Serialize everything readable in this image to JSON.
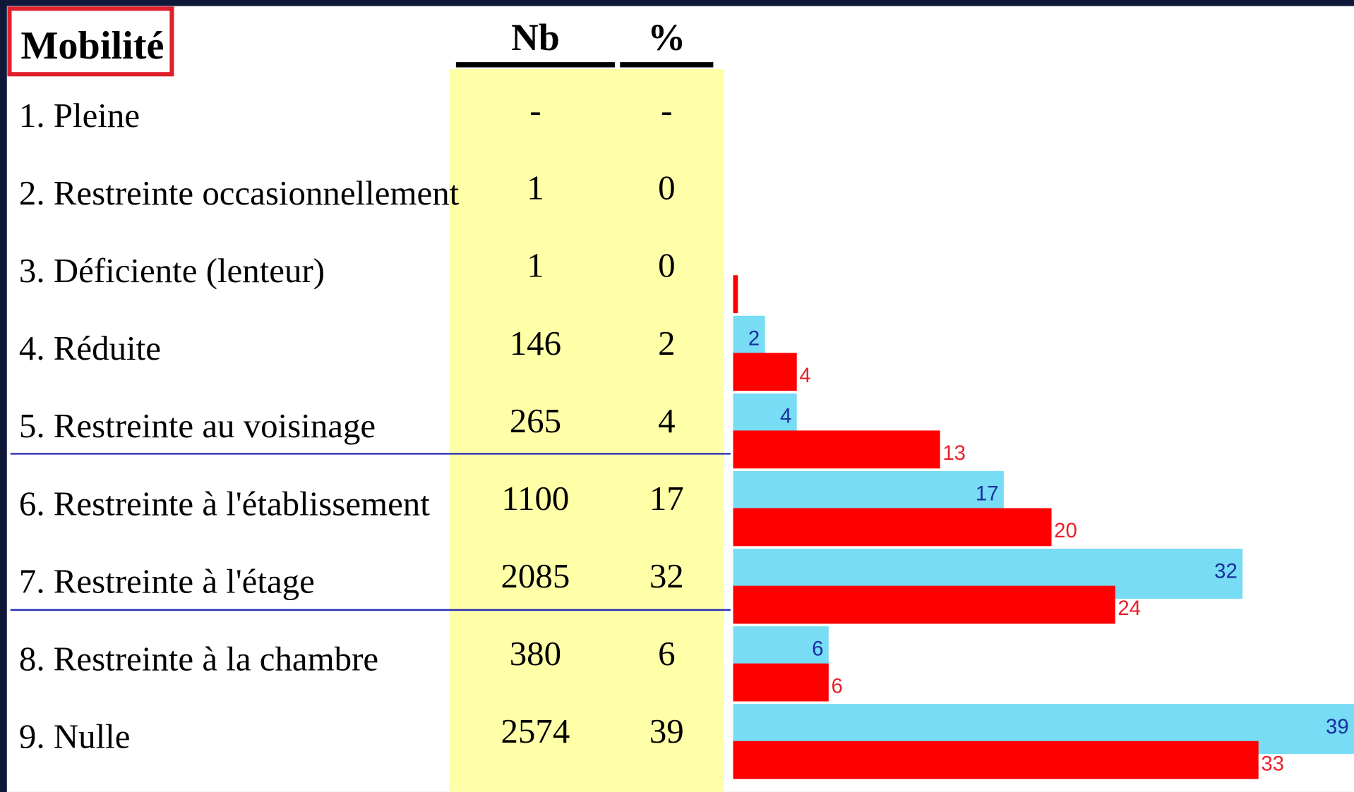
{
  "table": {
    "title": "Mobilité",
    "headers": [
      "Nb",
      "%"
    ],
    "rows": [
      [
        "1. Pleine",
        "-",
        "-"
      ],
      [
        "2. Restreinte occasionnellement",
        "1",
        "0"
      ],
      [
        "3. Déficiente (lenteur)",
        "1",
        "0"
      ],
      [
        "4. Réduite",
        "146",
        "2"
      ],
      [
        "5. Restreinte au voisinage",
        "265",
        "4"
      ],
      [
        "6. Restreinte à l'établissement",
        "1100",
        "17"
      ],
      [
        "7. Restreinte à l'étage",
        "2085",
        "32"
      ],
      [
        "8. Restreinte à la chambre",
        "380",
        "6"
      ],
      [
        "9. Nulle",
        "2574",
        "39"
      ]
    ]
  },
  "chart_data": {
    "type": "bar",
    "orientation": "horizontal",
    "xlim": [
      0,
      39
    ],
    "series": [
      {
        "color": "#77dcf4",
        "label_color": "#1a2fa0",
        "values": [
          null,
          null,
          null,
          2,
          4,
          17,
          32,
          6,
          39
        ],
        "value_labels": [
          null,
          null,
          null,
          "2",
          "4",
          "17",
          "32",
          "6",
          "39"
        ]
      },
      {
        "color": "#ff0000",
        "label_color": "#e8202a",
        "values": [
          null,
          null,
          0.3,
          4,
          13,
          20,
          24,
          6,
          33
        ],
        "value_labels": [
          null,
          null,
          null,
          "4",
          "13",
          "20",
          "24",
          "6",
          "33"
        ]
      }
    ]
  }
}
